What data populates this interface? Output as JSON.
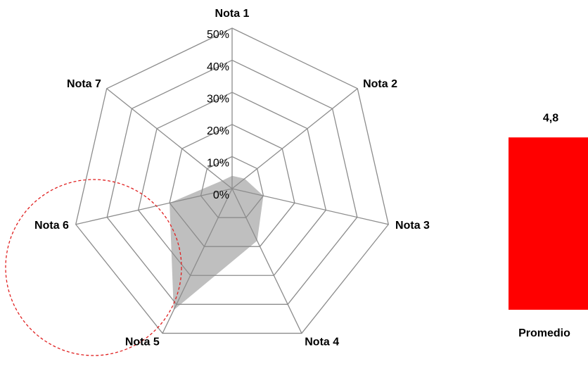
{
  "chart_data": [
    {
      "type": "radar",
      "categories": [
        "Nota 1",
        "Nota 2",
        "Nota 3",
        "Nota 4",
        "Nota 5",
        "Nota 6",
        "Nota 7"
      ],
      "values": [
        4,
        5,
        10,
        18,
        42,
        20,
        4
      ],
      "color": "#bfbfbf",
      "rlim": [
        0,
        50
      ],
      "rticks": [
        {
          "value": 0,
          "label": "0%"
        },
        {
          "value": 10,
          "label": "10%"
        },
        {
          "value": 20,
          "label": "20%"
        },
        {
          "value": 30,
          "label": "30%"
        },
        {
          "value": 40,
          "label": "40%"
        },
        {
          "value": 50,
          "label": "50%"
        }
      ],
      "grid": true
    },
    {
      "type": "bar",
      "categories": [
        "Promedio"
      ],
      "values": [
        4.8
      ],
      "value_labels": [
        "4,8"
      ],
      "color": "#ff0000",
      "ylim": [
        0,
        5
      ]
    }
  ]
}
